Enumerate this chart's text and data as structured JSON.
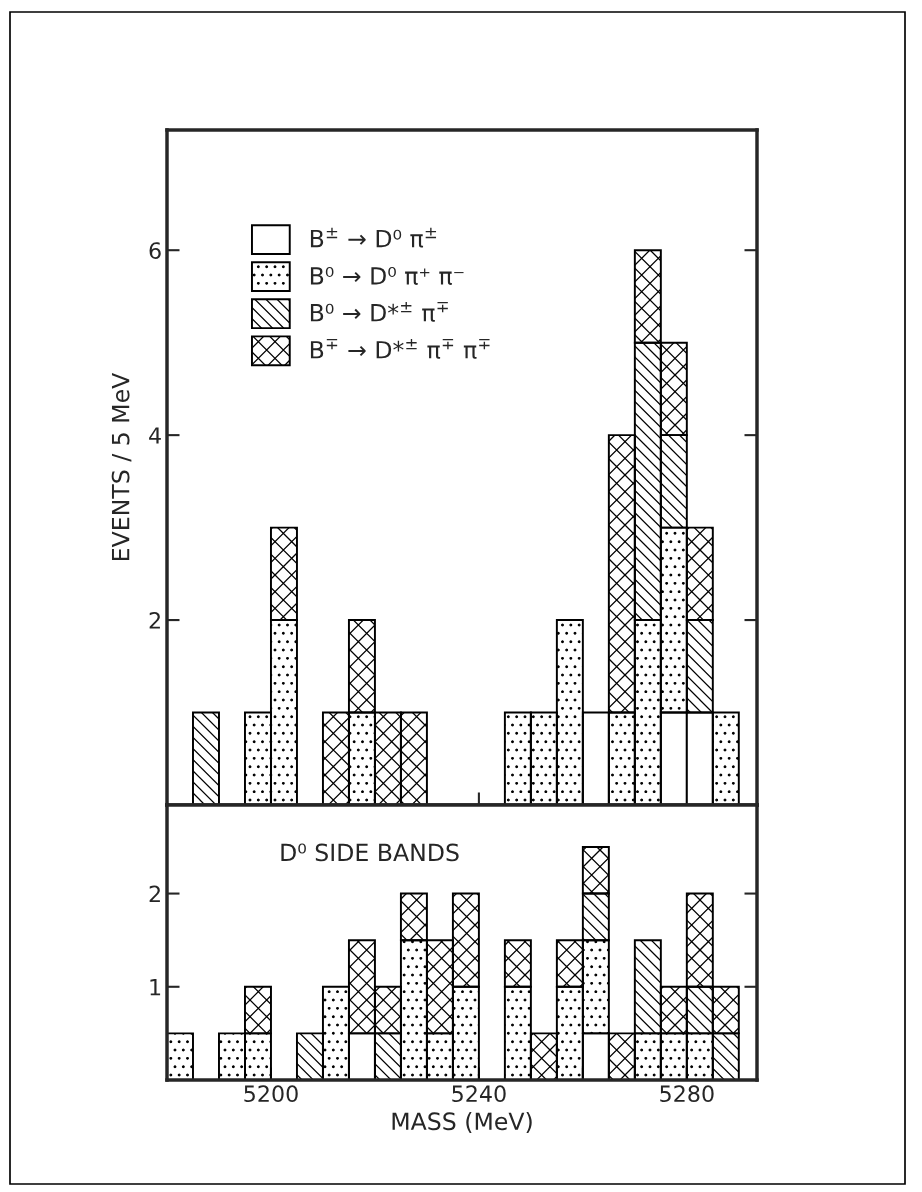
{
  "chart_data": [
    {
      "type": "bar",
      "ylabel": "EVENTS / 5 MeV",
      "stacked": true,
      "legend": "top left",
      "grid": false,
      "tick_labels": "y",
      "x": [
        5182.5,
        5187.5,
        5192.5,
        5197.5,
        5202.5,
        5207.5,
        5212.5,
        5217.5,
        5222.5,
        5227.5,
        5232.5,
        5237.5,
        5242.5,
        5247.5,
        5252.5,
        5257.5,
        5262.5,
        5267.5,
        5272.5,
        5277.5,
        5282.5,
        5287.5
      ],
      "xlim": [
        5180,
        5293.5
      ],
      "xticks": [
        {
          "value": 5200,
          "label": null
        },
        {
          "value": 5220,
          "label": null
        },
        {
          "value": 5240,
          "label": null
        },
        {
          "value": 5260,
          "label": null
        },
        {
          "value": 5280,
          "label": null
        }
      ],
      "ylim": [
        0,
        7.3
      ],
      "yticks": [
        2,
        4,
        6
      ],
      "series": [
        {
          "name": "B$^{±}$ → D⁰ π$^{±}$",
          "color": "#ffffff",
          "values": [
            0,
            0,
            0,
            0,
            0,
            0,
            0,
            0,
            0,
            0,
            0,
            0,
            0,
            0,
            0,
            0,
            1,
            0,
            0,
            1,
            1,
            0
          ]
        },
        {
          "name": "B⁰ → D⁰ π⁺ π⁻",
          "color": "#000000",
          "values": [
            0,
            0,
            0,
            1,
            2,
            0,
            0,
            1,
            0,
            0,
            0,
            0,
            0,
            1,
            1,
            2,
            0,
            1,
            2,
            2,
            0,
            1
          ]
        },
        {
          "name": "B⁰ → D*$^{±}$ π$^{∓}$",
          "color": "#000000",
          "values": [
            0,
            1,
            0,
            0,
            0,
            0,
            0,
            0,
            0,
            0,
            0,
            0,
            0,
            0,
            0,
            0,
            0,
            0,
            3,
            1,
            1,
            0
          ]
        },
        {
          "name": "B$^{∓}$ → D*$^{±}$ π$^{∓}$ π$^{∓}$",
          "color": "#000000",
          "values": [
            0,
            0,
            0,
            0,
            1,
            0,
            1,
            1,
            1,
            1,
            0,
            0,
            0,
            0,
            0,
            0,
            0,
            3,
            1,
            1,
            1,
            0
          ]
        }
      ]
    },
    {
      "type": "bar",
      "xlabel": "MASS (MeV)",
      "stacked": true,
      "grid": false,
      "annotations": [
        "D⁰ SIDE BANDS"
      ],
      "x": [
        5182.5,
        5187.5,
        5192.5,
        5197.5,
        5202.5,
        5207.5,
        5212.5,
        5217.5,
        5222.5,
        5227.5,
        5232.5,
        5237.5,
        5242.5,
        5247.5,
        5252.5,
        5257.5,
        5262.5,
        5267.5,
        5272.5,
        5277.5,
        5282.5,
        5287.5
      ],
      "xlim": [
        5180,
        5293.5
      ],
      "xticks": [
        5200,
        {
          "value": 5220,
          "label": null
        },
        5240,
        {
          "value": 5260,
          "label": null
        },
        5280
      ],
      "ylim": [
        0,
        2.95
      ],
      "yticks": [
        1,
        2
      ],
      "series": [
        {
          "color": "#ffffff",
          "values": [
            0,
            0,
            0,
            0,
            0,
            0,
            0,
            0.5,
            0,
            0,
            0,
            0,
            0,
            0,
            0,
            0,
            0.5,
            0,
            0,
            0,
            0,
            0
          ]
        },
        {
          "color": "#000000",
          "values": [
            0.5,
            0,
            0.5,
            0.5,
            0,
            0,
            1,
            0,
            0,
            1.5,
            0.5,
            1,
            0,
            1,
            0,
            1,
            1,
            0,
            0.5,
            0.5,
            0.5,
            0
          ]
        },
        {
          "color": "#000000",
          "values": [
            0,
            0,
            0,
            0,
            0,
            0.5,
            0,
            0,
            0.5,
            0,
            0,
            0,
            0,
            0,
            0,
            0,
            0.5,
            0,
            1,
            0,
            0.5,
            0.5
          ]
        },
        {
          "color": "#000000",
          "values": [
            0,
            0,
            0,
            0.5,
            0,
            0,
            0,
            1,
            0.5,
            0.5,
            1,
            1,
            0,
            0.5,
            0.5,
            0.5,
            0.5,
            0.5,
            0,
            0.5,
            1,
            0.5
          ]
        }
      ]
    }
  ]
}
